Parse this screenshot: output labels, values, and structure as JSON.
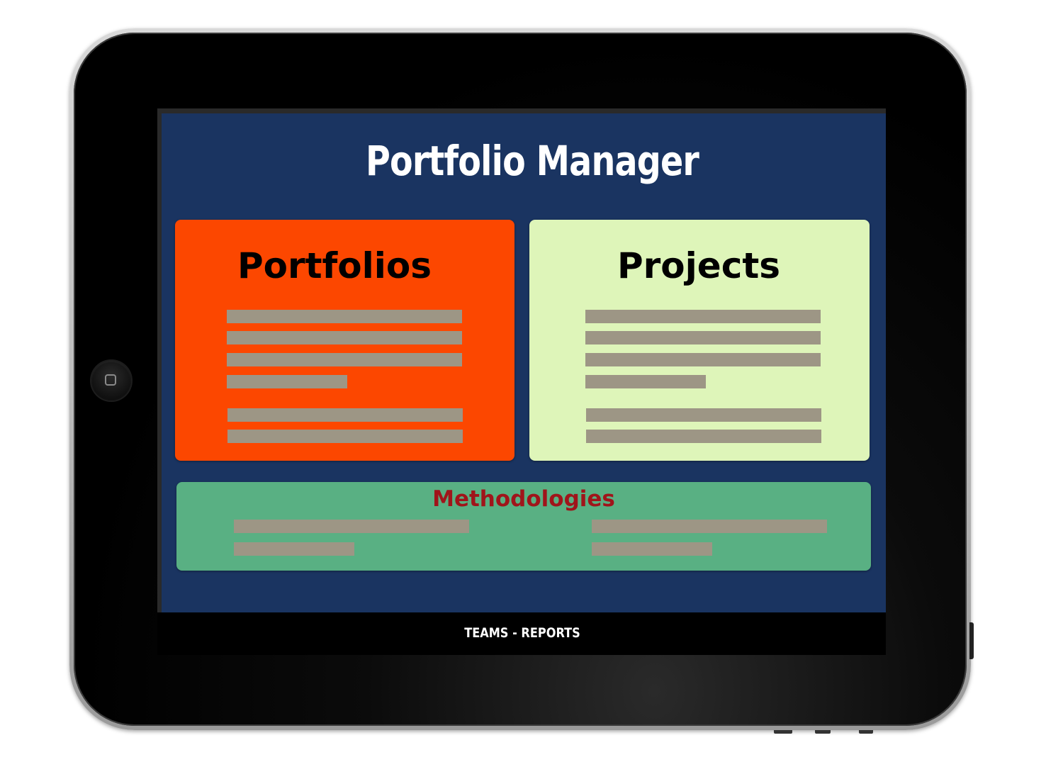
{
  "app": {
    "title": "Portfolio Manager"
  },
  "cards": {
    "portfolios": {
      "title": "Portfolios"
    },
    "projects": {
      "title": "Projects"
    },
    "methodologies": {
      "title": "Methodologies"
    }
  },
  "footer": {
    "teams_label": "TEAMS",
    "separator": " - ",
    "reports_label": "REPORTS"
  },
  "colors": {
    "screen_background": "#1a3461",
    "portfolios_card": "#fc4700",
    "projects_card": "#def5b9",
    "methodologies_card": "#59b083",
    "methodologies_title": "#a0141a",
    "placeholder_bar": "#9d9685",
    "footer_background": "#000000"
  },
  "icons": {
    "home_button": "home-square-icon"
  }
}
